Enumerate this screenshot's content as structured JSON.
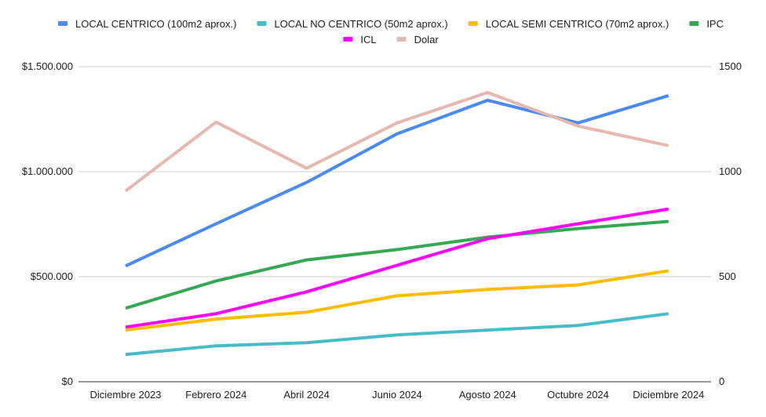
{
  "chart_data": {
    "type": "line",
    "title": "",
    "categories": [
      "Diciembre 2023",
      "Febrero 2024",
      "Abril 2024",
      "Junio 2024",
      "Agosto 2024",
      "Octubre 2024",
      "Diciembre 2024"
    ],
    "left_axis": {
      "ticks": [
        "$0",
        "$500.000",
        "$1.000.000",
        "$1.500.000"
      ],
      "range": [
        0,
        1500000
      ]
    },
    "right_axis": {
      "ticks": [
        "0",
        "500",
        "1000",
        "1500"
      ],
      "range": [
        0,
        1500
      ]
    },
    "legend_position": "top",
    "gridlines": true,
    "series": [
      {
        "name": "LOCAL CENTRICO (100m2 aprox.)",
        "axis": "left",
        "color": "#4a8af4",
        "values": [
          551000,
          752000,
          949000,
          1180000,
          1340000,
          1232000,
          1362000
        ]
      },
      {
        "name": "LOCAL NO CENTRICO (50m2 aprox.)",
        "axis": "left",
        "color": "#46bdc6",
        "values": [
          130000,
          171000,
          186000,
          223000,
          246000,
          268000,
          324000
        ]
      },
      {
        "name": "LOCAL SEMI CENTRICO (70m2 aprox.)",
        "axis": "left",
        "color": "#fbbc04",
        "values": [
          246000,
          298000,
          331000,
          409000,
          439000,
          461000,
          528000
        ]
      },
      {
        "name": "IPC",
        "axis": "right",
        "color": "#34a853",
        "values": [
          350,
          480,
          580,
          629,
          688,
          729,
          763
        ]
      },
      {
        "name": "ICL",
        "axis": "right",
        "color": "#ff00ff",
        "values": [
          260,
          324,
          428,
          554,
          681,
          752,
          822
        ]
      },
      {
        "name": "Dolar",
        "axis": "right",
        "color": "#e6b8af",
        "values": [
          908,
          1236,
          1016,
          1232,
          1377,
          1217,
          1124
        ]
      }
    ]
  }
}
